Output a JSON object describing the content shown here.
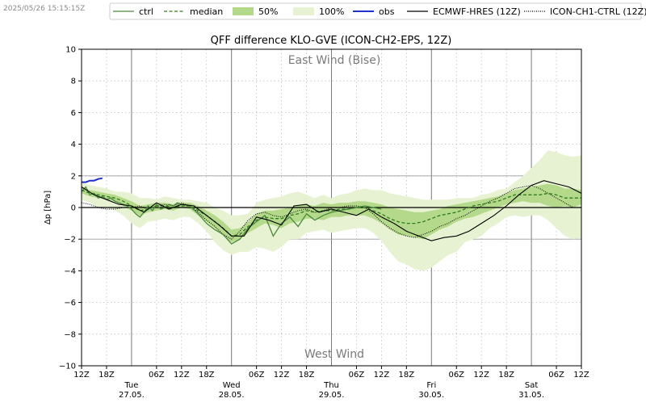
{
  "timestamp": "2025/05/26 15:15:15Z",
  "chart_data": {
    "type": "line",
    "title": "QFF difference KLO-GVE (ICON-CH2-EPS, 12Z)",
    "ylabel": "Δp [hPa]",
    "xlabel": "",
    "ylim": [
      -10,
      10
    ],
    "xlim_hours": [
      0,
      120
    ],
    "grid": true,
    "legend_placement": "top",
    "annotations": {
      "top": "East Wind (Bise)",
      "bottom": "West Wind"
    },
    "y_ticks": [
      -10,
      -8,
      -6,
      -4,
      -2,
      0,
      2,
      4,
      6,
      8,
      10
    ],
    "x_hour_ticks": [
      0,
      6,
      18,
      24,
      42,
      48,
      66,
      72,
      90,
      96,
      114,
      120
    ],
    "x_tick_labels": [
      "12Z",
      "18Z",
      "06Z",
      "12Z",
      "18Z",
      "06Z",
      "12Z",
      "18Z",
      "06Z",
      "12Z",
      "18Z",
      "06Z",
      "12Z",
      "18Z",
      "06Z",
      "12Z"
    ],
    "x_tick_hours": [
      0,
      6,
      18,
      24,
      30,
      42,
      48,
      54,
      66,
      72,
      78,
      90,
      96,
      102,
      114,
      120
    ],
    "day_labels": [
      {
        "day": "Tue",
        "date": "27.05.",
        "hour": 12
      },
      {
        "day": "Wed",
        "date": "28.05.",
        "hour": 36
      },
      {
        "day": "Thu",
        "date": "29.05.",
        "hour": 60
      },
      {
        "day": "Fri",
        "date": "30.05.",
        "hour": 84
      },
      {
        "day": "Sat",
        "date": "31.05.",
        "hour": 108
      }
    ],
    "day_lines_hours": [
      12,
      36,
      60,
      84,
      108
    ],
    "legend": [
      {
        "label": "ctrl",
        "style": "line",
        "color": "#4a8a3a"
      },
      {
        "label": "median",
        "style": "dashed",
        "color": "#2e7d1e"
      },
      {
        "label": "50%",
        "style": "fill",
        "color": "#b5d98a"
      },
      {
        "label": "100%",
        "style": "fill",
        "color": "#e6f2d2"
      },
      {
        "label": "obs",
        "style": "line",
        "color": "#1f2fd0"
      },
      {
        "label": "ECMWF-HRES (12Z)",
        "style": "line",
        "color": "#000000"
      },
      {
        "label": "ICON-CH1-CTRL (12Z)",
        "style": "dotted",
        "color": "#000000"
      }
    ],
    "series": [
      {
        "name": "100%",
        "type": "band",
        "x": [
          0,
          2,
          4,
          6,
          8,
          10,
          12,
          14,
          16,
          18,
          20,
          22,
          24,
          26,
          28,
          30,
          32,
          34,
          36,
          38,
          40,
          42,
          44,
          46,
          48,
          50,
          52,
          54,
          56,
          58,
          60,
          62,
          64,
          66,
          68,
          70,
          72,
          74,
          76,
          78,
          80,
          82,
          84,
          86,
          88,
          90,
          92,
          94,
          96,
          98,
          100,
          102,
          104,
          106,
          108,
          110,
          112,
          114,
          116,
          118,
          120
        ],
        "low": [
          0.5,
          0.3,
          0.0,
          0.0,
          -0.2,
          -0.5,
          -1.0,
          -1.3,
          -0.9,
          -0.8,
          -0.7,
          -0.8,
          -0.6,
          -0.6,
          -1.0,
          -1.5,
          -2.2,
          -2.7,
          -3.0,
          -2.8,
          -2.8,
          -2.5,
          -2.6,
          -2.8,
          -2.5,
          -2.0,
          -2.0,
          -1.6,
          -1.5,
          -1.4,
          -1.6,
          -1.5,
          -1.4,
          -1.3,
          -1.3,
          -1.6,
          -2.1,
          -2.8,
          -3.4,
          -3.6,
          -3.9,
          -4.0,
          -3.8,
          -3.4,
          -3.0,
          -2.8,
          -2.2,
          -2.0,
          -1.8,
          -1.3,
          -1.0,
          -0.6,
          -0.5,
          -0.6,
          -0.5,
          -0.5,
          -0.8,
          -1.3,
          -1.8,
          -2.0,
          -1.9
        ],
        "high": [
          1.6,
          1.4,
          1.3,
          1.2,
          1.0,
          1.0,
          0.9,
          0.6,
          0.6,
          0.5,
          0.7,
          0.6,
          0.5,
          0.5,
          0.4,
          0.3,
          0.0,
          -0.2,
          -0.5,
          -0.5,
          -0.4,
          0.3,
          0.5,
          0.6,
          0.7,
          0.9,
          1.0,
          0.8,
          0.6,
          0.8,
          0.6,
          0.8,
          0.9,
          1.1,
          1.2,
          1.1,
          1.1,
          0.9,
          0.8,
          0.7,
          0.6,
          0.5,
          0.5,
          0.5,
          0.5,
          0.6,
          0.6,
          0.6,
          0.8,
          0.9,
          1.1,
          1.2,
          1.6,
          2.0,
          2.5,
          3.0,
          3.6,
          3.5,
          3.3,
          3.2,
          3.3
        ]
      },
      {
        "name": "50%",
        "type": "band",
        "x": [
          0,
          2,
          4,
          6,
          8,
          10,
          12,
          14,
          16,
          18,
          20,
          22,
          24,
          26,
          28,
          30,
          32,
          34,
          36,
          38,
          40,
          42,
          44,
          46,
          48,
          50,
          52,
          54,
          56,
          58,
          60,
          62,
          64,
          66,
          68,
          70,
          72,
          74,
          76,
          78,
          80,
          82,
          84,
          86,
          88,
          90,
          92,
          94,
          96,
          98,
          100,
          102,
          104,
          106,
          108,
          110,
          112,
          114,
          116,
          118,
          120
        ],
        "low": [
          0.9,
          0.7,
          0.6,
          0.5,
          0.4,
          0.1,
          -0.2,
          -0.5,
          -0.3,
          -0.2,
          -0.1,
          -0.2,
          0.0,
          -0.1,
          -0.5,
          -0.9,
          -1.3,
          -1.8,
          -2.2,
          -2.0,
          -1.6,
          -1.3,
          -1.0,
          -1.1,
          -1.3,
          -1.0,
          -0.9,
          -0.7,
          -0.7,
          -0.8,
          -0.6,
          -0.6,
          -0.5,
          -0.5,
          -0.5,
          -0.7,
          -1.0,
          -1.4,
          -1.7,
          -1.8,
          -1.9,
          -2.0,
          -1.7,
          -1.4,
          -1.2,
          -0.9,
          -0.7,
          -0.6,
          -0.4,
          -0.2,
          0.0,
          0.2,
          0.3,
          0.4,
          0.3,
          0.3,
          0.1,
          0.0,
          0.1,
          0.0,
          0.2
        ],
        "high": [
          1.3,
          1.1,
          1.0,
          0.9,
          0.8,
          0.6,
          0.4,
          0.1,
          0.2,
          0.3,
          0.3,
          0.2,
          0.3,
          0.3,
          0.1,
          -0.2,
          -0.5,
          -0.9,
          -1.4,
          -1.3,
          -0.9,
          -0.4,
          -0.2,
          -0.2,
          -0.1,
          0.0,
          0.1,
          0.2,
          0.1,
          0.3,
          0.2,
          0.3,
          0.3,
          0.4,
          0.4,
          0.3,
          0.2,
          0.0,
          -0.1,
          -0.2,
          -0.3,
          -0.3,
          -0.2,
          -0.1,
          0.1,
          0.2,
          0.3,
          0.4,
          0.5,
          0.6,
          0.7,
          0.9,
          1.1,
          1.2,
          1.3,
          1.4,
          1.5,
          1.4,
          1.2,
          1.2,
          1.1
        ]
      },
      {
        "name": "ctrl",
        "type": "line",
        "x": [
          0,
          1,
          2,
          3,
          4,
          5,
          6,
          7,
          8,
          9,
          10,
          11,
          12,
          13,
          14,
          15,
          16,
          17,
          18,
          19,
          20,
          21,
          22,
          23,
          24,
          26,
          28,
          30,
          32,
          34,
          36,
          38,
          40,
          42,
          44,
          46,
          48,
          50,
          52,
          54,
          56,
          58,
          60,
          62,
          64,
          66,
          68,
          70,
          72
        ],
        "values": [
          1.0,
          1.3,
          0.8,
          0.9,
          0.6,
          0.7,
          0.5,
          0.6,
          0.4,
          0.3,
          0.2,
          0.1,
          -0.1,
          -0.4,
          -0.6,
          -0.3,
          0.1,
          -0.2,
          0.2,
          -0.1,
          0.0,
          0.2,
          0.1,
          0.3,
          0.2,
          0.1,
          -0.4,
          -1.0,
          -1.4,
          -1.7,
          -2.3,
          -2.0,
          -1.3,
          -0.9,
          -0.5,
          -1.8,
          -1.0,
          -0.6,
          -1.2,
          -0.4,
          -0.8,
          -0.5,
          -0.3,
          -0.2,
          -0.1,
          0.0,
          0.1,
          0.0,
          -0.1
        ]
      },
      {
        "name": "median",
        "type": "line",
        "x": [
          0,
          2,
          4,
          6,
          8,
          10,
          12,
          14,
          16,
          18,
          20,
          22,
          24,
          26,
          28,
          30,
          32,
          34,
          36,
          38,
          40,
          42,
          44,
          46,
          48,
          50,
          52,
          54,
          56,
          58,
          60,
          62,
          64,
          66,
          68,
          70,
          72,
          74,
          76,
          78,
          80,
          82,
          84,
          86,
          88,
          90,
          92,
          94,
          96,
          98,
          100,
          102,
          104,
          106,
          108,
          110,
          112,
          114,
          116,
          118,
          120
        ],
        "values": [
          1.1,
          0.9,
          0.8,
          0.7,
          0.6,
          0.4,
          0.1,
          -0.2,
          -0.1,
          0.1,
          0.1,
          0.0,
          0.1,
          0.1,
          -0.2,
          -0.5,
          -0.9,
          -1.3,
          -1.8,
          -1.7,
          -1.2,
          -0.8,
          -0.6,
          -0.7,
          -0.7,
          -0.5,
          -0.4,
          -0.2,
          -0.3,
          -0.2,
          -0.2,
          -0.1,
          -0.1,
          0.0,
          0.0,
          -0.2,
          -0.4,
          -0.7,
          -0.9,
          -1.0,
          -1.0,
          -0.9,
          -0.7,
          -0.5,
          -0.4,
          -0.3,
          -0.1,
          0.1,
          0.2,
          0.3,
          0.4,
          0.6,
          0.8,
          0.8,
          0.8,
          0.8,
          0.9,
          0.8,
          0.6,
          0.6,
          0.6
        ]
      },
      {
        "name": "obs",
        "type": "line",
        "x": [
          0,
          1,
          2,
          3,
          4,
          5
        ],
        "values": [
          1.6,
          1.6,
          1.7,
          1.7,
          1.8,
          1.85
        ]
      },
      {
        "name": "ECMWF-HRES (12Z)",
        "type": "line",
        "x": [
          0,
          3,
          6,
          9,
          12,
          15,
          18,
          21,
          24,
          27,
          30,
          33,
          36,
          39,
          42,
          45,
          48,
          51,
          54,
          57,
          60,
          63,
          66,
          69,
          72,
          75,
          78,
          81,
          84,
          87,
          90,
          93,
          96,
          99,
          102,
          105,
          108,
          111,
          114,
          117,
          120
        ],
        "values": [
          1.3,
          0.8,
          0.5,
          0.2,
          0.1,
          -0.3,
          0.3,
          -0.1,
          0.2,
          0.1,
          -0.5,
          -1.1,
          -1.8,
          -1.8,
          -0.6,
          -0.8,
          -1.1,
          0.1,
          0.2,
          -0.3,
          -0.1,
          -0.3,
          -0.5,
          -0.1,
          -0.6,
          -1.0,
          -1.5,
          -1.8,
          -2.1,
          -1.9,
          -1.8,
          -1.5,
          -1.0,
          -0.5,
          0.1,
          0.8,
          1.4,
          1.7,
          1.5,
          1.3,
          0.9
        ]
      },
      {
        "name": "ICON-CH1-CTRL (12Z)",
        "type": "line",
        "x": [
          0,
          2,
          4,
          6,
          8,
          10,
          12,
          14,
          16,
          18,
          20,
          22,
          24,
          26,
          28,
          30,
          32,
          34,
          36,
          38,
          40,
          42,
          44,
          46,
          48,
          50,
          52,
          54,
          56,
          58,
          60,
          62,
          64,
          66,
          68,
          70,
          72,
          74,
          76,
          78,
          80,
          82,
          84,
          86,
          88,
          90,
          92,
          94,
          96,
          98,
          100,
          102,
          104,
          106,
          108,
          110,
          112,
          114,
          116,
          118,
          120
        ],
        "values": [
          0.3,
          0.2,
          0.0,
          -0.1,
          -0.1,
          0.0,
          0.0,
          0.1,
          -0.1,
          0.1,
          0.2,
          0.1,
          0.3,
          0.1,
          -0.3,
          -0.8,
          -1.2,
          -1.7,
          -2.0,
          -1.5,
          -0.8,
          -0.4,
          -0.3,
          -0.5,
          -0.6,
          -0.4,
          -0.2,
          -0.1,
          -0.3,
          -0.2,
          0.0,
          0.0,
          0.1,
          0.1,
          0.0,
          -0.4,
          -0.9,
          -1.3,
          -1.6,
          -1.8,
          -1.9,
          -1.7,
          -1.5,
          -1.2,
          -1.0,
          -0.7,
          -0.5,
          -0.2,
          0.1,
          0.4,
          0.6,
          0.9,
          1.2,
          1.3,
          1.4,
          1.2,
          0.9,
          0.6,
          0.3,
          0.0,
          0.0
        ]
      }
    ],
    "colors": {
      "band_100": "#e6f2d2",
      "band_50": "#b5d98a",
      "ctrl": "#4a8a3a",
      "median": "#2e7d1e",
      "obs": "#1f2fd0",
      "ecmwf": "#000000",
      "icon_ch1": "#000000"
    }
  }
}
